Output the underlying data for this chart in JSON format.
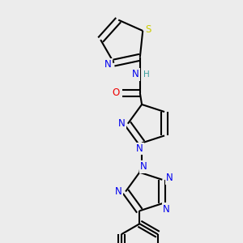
{
  "background_color": "#ececec",
  "bond_color": "#000000",
  "bond_width": 1.5,
  "atom_colors": {
    "N": "#0000ee",
    "O": "#ee0000",
    "S": "#cccc00",
    "H": "#3a9e9e",
    "C": "#000000"
  },
  "font_size_atom": 8.5,
  "font_size_H": 7.5
}
